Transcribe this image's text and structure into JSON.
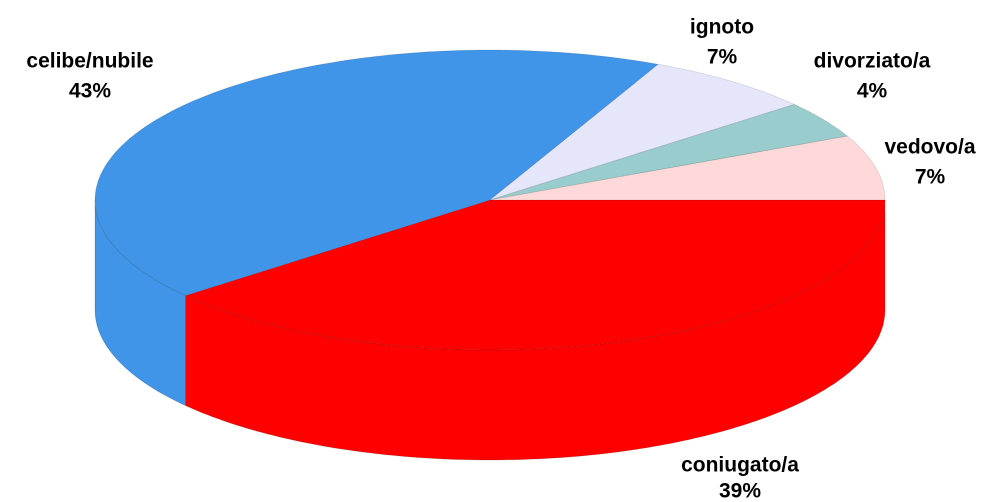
{
  "chart_data": {
    "type": "pie3d",
    "categories": [
      "coniugato/a",
      "celibe/nubile",
      "ignoto",
      "divorziato/a",
      "vedovo/a"
    ],
    "values": [
      39,
      43,
      7,
      4,
      7
    ],
    "value_labels": [
      "39%",
      "43%",
      "7%",
      "4%",
      "7%"
    ],
    "colors": [
      "#ff0000",
      "#4195e8",
      "#e6e6fa",
      "#99cccc",
      "#ffd9d9"
    ]
  }
}
